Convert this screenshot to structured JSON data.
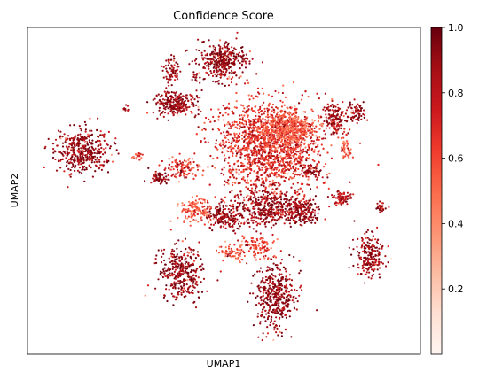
{
  "chart_data": {
    "type": "scatter",
    "title": "Confidence Score",
    "xlabel": "UMAP1",
    "ylabel": "UMAP2",
    "x_ticks_shown": false,
    "y_ticks_shown": false,
    "grid": false,
    "colormap": "Reds",
    "colorbar": {
      "range": [
        0.0,
        1.0
      ],
      "ticks": [
        0.2,
        0.4,
        0.6,
        0.8,
        1.0
      ],
      "tick_labels": [
        "0.2",
        "0.4",
        "0.6",
        "0.8",
        "1.0"
      ]
    },
    "clusters": [
      {
        "x": 0.14,
        "y": 0.623,
        "rx": 0.06,
        "ry": 0.06,
        "n": 420,
        "score": 0.93
      },
      {
        "x": 0.248,
        "y": 0.75,
        "rx": 0.008,
        "ry": 0.01,
        "n": 12,
        "score": 0.85
      },
      {
        "x": 0.278,
        "y": 0.605,
        "rx": 0.012,
        "ry": 0.01,
        "n": 20,
        "score": 0.6
      },
      {
        "x": 0.497,
        "y": 0.895,
        "rx": 0.055,
        "ry": 0.05,
        "n": 380,
        "score": 0.96
      },
      {
        "x": 0.375,
        "y": 0.768,
        "rx": 0.05,
        "ry": 0.035,
        "n": 260,
        "score": 0.93
      },
      {
        "x": 0.368,
        "y": 0.865,
        "rx": 0.018,
        "ry": 0.035,
        "n": 70,
        "score": 0.94
      },
      {
        "x": 0.425,
        "y": 0.85,
        "rx": 0.01,
        "ry": 0.01,
        "n": 14,
        "score": 0.9
      },
      {
        "x": 0.335,
        "y": 0.54,
        "rx": 0.025,
        "ry": 0.015,
        "n": 60,
        "score": 0.94
      },
      {
        "x": 0.393,
        "y": 0.25,
        "rx": 0.05,
        "ry": 0.075,
        "n": 330,
        "score": 0.96
      },
      {
        "x": 0.61,
        "y": 0.64,
        "rx": 0.12,
        "ry": 0.12,
        "n": 1800,
        "score": 0.68
      },
      {
        "x": 0.66,
        "y": 0.69,
        "rx": 0.06,
        "ry": 0.045,
        "n": 500,
        "score": 0.52
      },
      {
        "x": 0.61,
        "y": 0.45,
        "rx": 0.08,
        "ry": 0.05,
        "n": 420,
        "score": 0.9
      },
      {
        "x": 0.5,
        "y": 0.42,
        "rx": 0.04,
        "ry": 0.035,
        "n": 180,
        "score": 0.93
      },
      {
        "x": 0.7,
        "y": 0.44,
        "rx": 0.045,
        "ry": 0.035,
        "n": 200,
        "score": 0.92
      },
      {
        "x": 0.72,
        "y": 0.56,
        "rx": 0.025,
        "ry": 0.02,
        "n": 70,
        "score": 0.93
      },
      {
        "x": 0.63,
        "y": 0.18,
        "rx": 0.045,
        "ry": 0.09,
        "n": 420,
        "score": 0.94
      },
      {
        "x": 0.58,
        "y": 0.33,
        "rx": 0.04,
        "ry": 0.03,
        "n": 110,
        "score": 0.65
      },
      {
        "x": 0.78,
        "y": 0.72,
        "rx": 0.03,
        "ry": 0.045,
        "n": 160,
        "score": 0.88
      },
      {
        "x": 0.8,
        "y": 0.48,
        "rx": 0.025,
        "ry": 0.02,
        "n": 80,
        "score": 0.82
      },
      {
        "x": 0.87,
        "y": 0.3,
        "rx": 0.035,
        "ry": 0.055,
        "n": 200,
        "score": 0.88
      },
      {
        "x": 0.9,
        "y": 0.45,
        "rx": 0.01,
        "ry": 0.015,
        "n": 30,
        "score": 0.88
      },
      {
        "x": 0.43,
        "y": 0.44,
        "rx": 0.035,
        "ry": 0.035,
        "n": 140,
        "score": 0.55
      },
      {
        "x": 0.52,
        "y": 0.31,
        "rx": 0.03,
        "ry": 0.02,
        "n": 60,
        "score": 0.55
      },
      {
        "x": 0.395,
        "y": 0.57,
        "rx": 0.04,
        "ry": 0.03,
        "n": 110,
        "score": 0.7
      },
      {
        "x": 0.81,
        "y": 0.635,
        "rx": 0.015,
        "ry": 0.03,
        "n": 50,
        "score": 0.5
      },
      {
        "x": 0.84,
        "y": 0.74,
        "rx": 0.02,
        "ry": 0.025,
        "n": 60,
        "score": 0.93
      }
    ]
  }
}
